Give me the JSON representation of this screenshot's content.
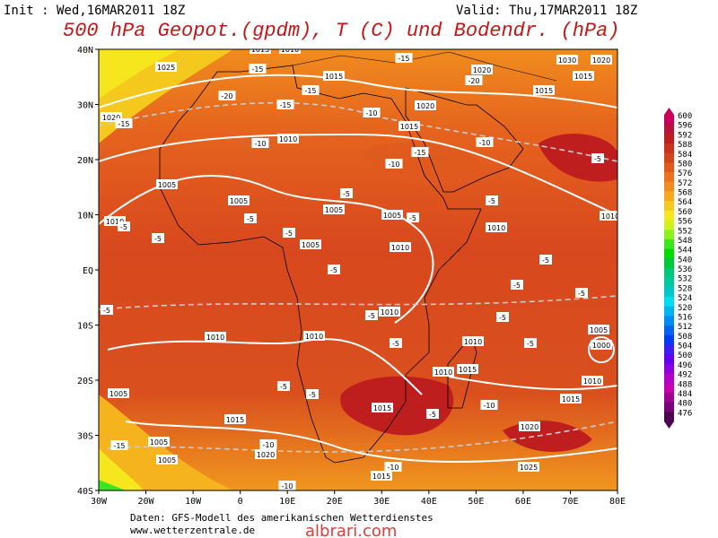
{
  "header": {
    "init": "Init : Wed,16MAR2011 18Z",
    "valid": "Valid: Thu,17MAR2011 18Z",
    "title": "500 hPa Geopot.(gpdm), T (C) und Bodendr. (hPa)"
  },
  "map": {
    "lat_labels": [
      "40N",
      "30N",
      "20N",
      "10N",
      "EQ",
      "10S",
      "20S",
      "30S",
      "40S"
    ],
    "lon_labels": [
      "30W",
      "20W",
      "10W",
      "0",
      "10E",
      "20E",
      "30E",
      "40E",
      "50E",
      "60E",
      "70E",
      "80E"
    ],
    "isobar_labels": [
      "1025",
      "1015",
      "1010",
      "1015",
      "1020",
      "1030",
      "1020",
      "1015",
      "1015",
      "1020",
      "1020",
      "1005",
      "1005",
      "1010",
      "1015",
      "1010",
      "1005",
      "1005",
      "1005",
      "1010",
      "1010",
      "1010",
      "1010",
      "1010",
      "1010",
      "1010",
      "1015",
      "1010",
      "1005",
      "1000",
      "1010",
      "1015",
      "1005",
      "1015",
      "1015",
      "1020",
      "1005",
      "1020",
      "1025",
      "1015",
      "1005"
    ],
    "temperature_labels": [
      "-15",
      "-15",
      "-20",
      "-15",
      "-20",
      "-15",
      "-10",
      "-15",
      "-10",
      "-10",
      "-15",
      "-10",
      "-5",
      "-5",
      "-5",
      "-5",
      "-5",
      "-5",
      "-5",
      "-5",
      "-5",
      "-5",
      "-5",
      "-5",
      "-5",
      "-5",
      "-5",
      "-5",
      "-5",
      "-5",
      "-5",
      "-5",
      "-10",
      "-10",
      "-15",
      "-10",
      "-10"
    ]
  },
  "colorbar": [
    {
      "label": "600",
      "color": "#c8005a"
    },
    {
      "label": "596",
      "color": "#b4143c"
    },
    {
      "label": "592",
      "color": "#be1e1e"
    },
    {
      "label": "588",
      "color": "#c8321e"
    },
    {
      "label": "584",
      "color": "#d2461e"
    },
    {
      "label": "580",
      "color": "#e05a1e"
    },
    {
      "label": "576",
      "color": "#eb731e"
    },
    {
      "label": "572",
      "color": "#f08c1e"
    },
    {
      "label": "568",
      "color": "#f5aa1e"
    },
    {
      "label": "564",
      "color": "#f5c81e"
    },
    {
      "label": "560",
      "color": "#f5e61e"
    },
    {
      "label": "556",
      "color": "#d2f01e"
    },
    {
      "label": "552",
      "color": "#8cf01e"
    },
    {
      "label": "548",
      "color": "#3ce61e"
    },
    {
      "label": "544",
      "color": "#00dc00"
    },
    {
      "label": "540",
      "color": "#00c83c"
    },
    {
      "label": "536",
      "color": "#00c878"
    },
    {
      "label": "532",
      "color": "#00c8a0"
    },
    {
      "label": "528",
      "color": "#00c8c8"
    },
    {
      "label": "524",
      "color": "#00dcf0"
    },
    {
      "label": "520",
      "color": "#00b4f0"
    },
    {
      "label": "516",
      "color": "#008cf0"
    },
    {
      "label": "512",
      "color": "#0064f0"
    },
    {
      "label": "508",
      "color": "#003cf0"
    },
    {
      "label": "504",
      "color": "#3c1ef0"
    },
    {
      "label": "500",
      "color": "#6400f0"
    },
    {
      "label": "496",
      "color": "#8c00dc"
    },
    {
      "label": "492",
      "color": "#b400c8"
    },
    {
      "label": "488",
      "color": "#c800b4"
    },
    {
      "label": "484",
      "color": "#a00090"
    },
    {
      "label": "480",
      "color": "#780078"
    },
    {
      "label": "476",
      "color": "#500050"
    }
  ],
  "footer": {
    "source": "Daten: GFS-Modell des amerikanischen Wetterdienstes",
    "site": "www.wetterzentrale.de",
    "watermark": "albrari.com"
  }
}
